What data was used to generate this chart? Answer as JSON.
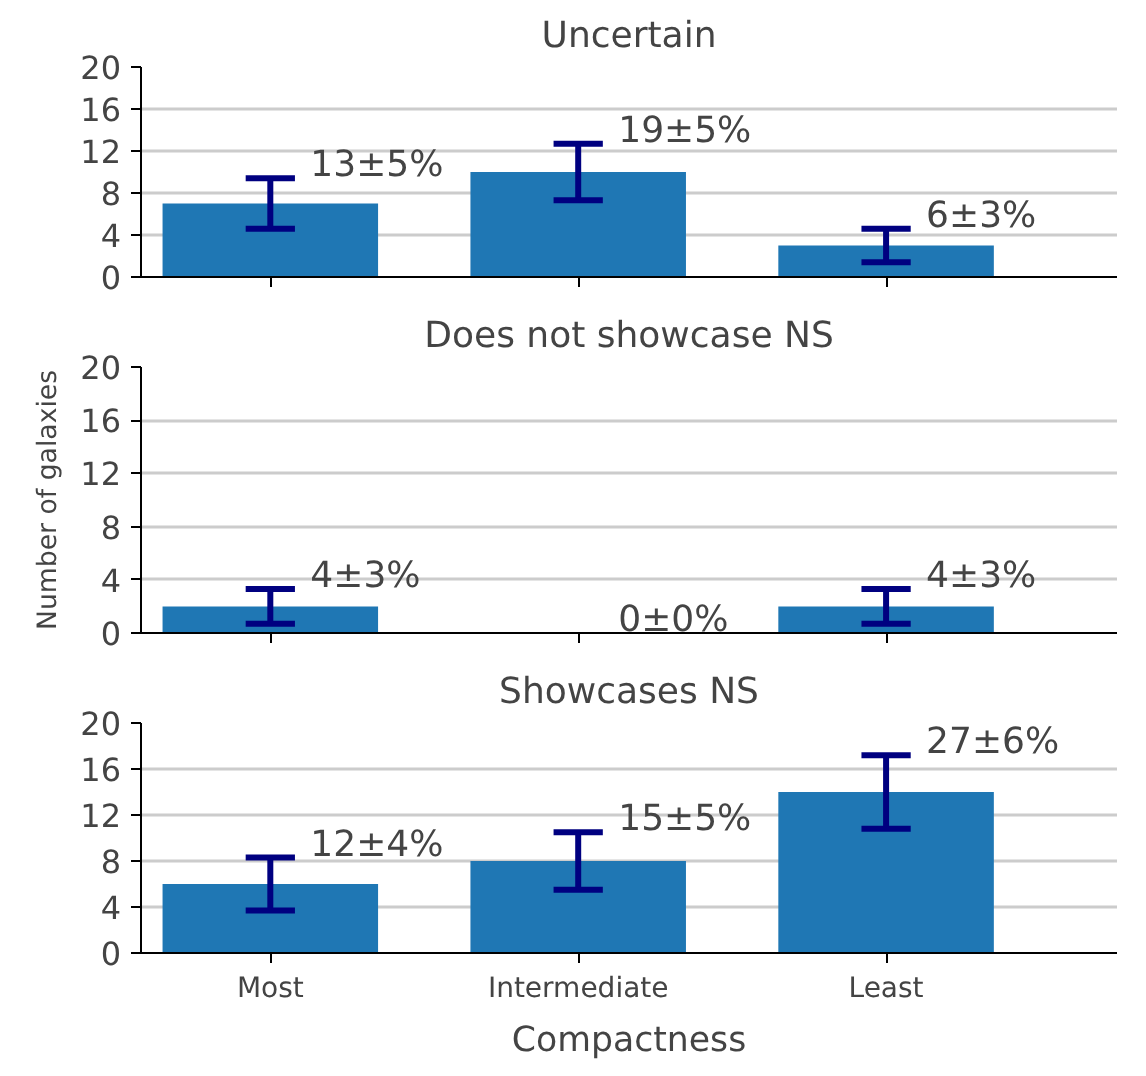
{
  "chart_data": [
    {
      "type": "bar",
      "title": "Uncertain",
      "categories": [
        "Most",
        "Intermediate",
        "Least"
      ],
      "values": [
        7,
        10,
        3
      ],
      "errors": [
        2.4,
        2.7,
        1.6
      ],
      "color": "#1f77b4",
      "ylim": [
        0,
        20
      ],
      "yticks": [
        0,
        4,
        8,
        12,
        16,
        20
      ],
      "grid": "y",
      "tick_labels": "y",
      "annotations": [
        {
          "text": "13±5%",
          "x": "Most",
          "y": 9.4
        },
        {
          "text": "19±5%",
          "x": "Intermediate",
          "y": 12.7
        },
        {
          "text": "6±3%",
          "x": "Least",
          "y": 4.6
        }
      ]
    },
    {
      "type": "bar",
      "title": "Does not showcase NS",
      "ylabel": "Number of galaxies",
      "categories": [
        "Most",
        "Intermediate",
        "Least"
      ],
      "values": [
        2,
        0,
        2
      ],
      "errors": [
        1.3,
        0,
        1.3
      ],
      "color": "#1f77b4",
      "ylim": [
        0,
        20
      ],
      "yticks": [
        0,
        4,
        8,
        12,
        16,
        20
      ],
      "grid": "y",
      "tick_labels": "y",
      "annotations": [
        {
          "text": "4±3%",
          "x": "Most",
          "y": 3.3
        },
        {
          "text": "0±0%",
          "x": "Intermediate",
          "y": 0
        },
        {
          "text": "4±3%",
          "x": "Least",
          "y": 3.3
        }
      ]
    },
    {
      "type": "bar",
      "title": "Showcases NS",
      "xlabel": "Compactness",
      "categories": [
        "Most",
        "Intermediate",
        "Least"
      ],
      "values": [
        6,
        8,
        14
      ],
      "errors": [
        2.3,
        2.5,
        3.2
      ],
      "color": "#1f77b4",
      "ylim": [
        0,
        20
      ],
      "yticks": [
        0,
        4,
        8,
        12,
        16,
        20
      ],
      "grid": "y",
      "annotations": [
        {
          "text": "12±4%",
          "x": "Most",
          "y": 8.3
        },
        {
          "text": "15±5%",
          "x": "Intermediate",
          "y": 10.5
        },
        {
          "text": "27±6%",
          "x": "Least",
          "y": 17.2
        }
      ]
    }
  ]
}
